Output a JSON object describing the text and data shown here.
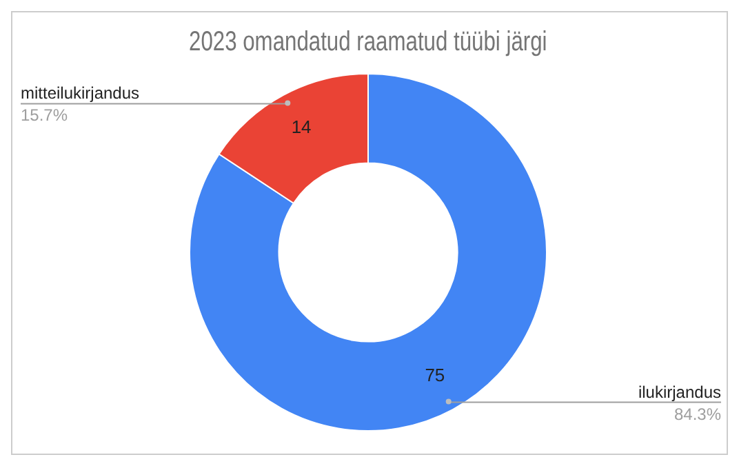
{
  "chart_data": {
    "type": "donut",
    "title": "2023 omandatud raamatud tüübi järgi",
    "categories": [
      "ilukirjandus",
      "mitteilukirjandus"
    ],
    "values": [
      75,
      14
    ],
    "colors": [
      "#4285f4",
      "#ea4335"
    ],
    "data_labels": true,
    "annotations": [
      "84.3%",
      "15.7%"
    ],
    "legend": false
  }
}
